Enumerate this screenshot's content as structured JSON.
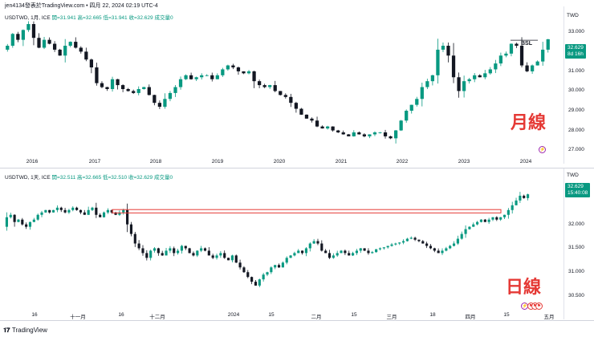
{
  "header": {
    "text": "jen4134發表於TradingView.com • 四月 22, 2024 02:19 UTC-4"
  },
  "top_pane": {
    "legend_symbol": "USDTWD, 1月, ICE",
    "legend_values": "開=31.941 高=32.665 低=31.941 收=32.629 成交量0",
    "currency": "TWD",
    "y_ticks": [
      "33.000",
      "32.000",
      "31.000",
      "30.000",
      "29.000",
      "28.000",
      "27.000"
    ],
    "price_tag_value": "32.629",
    "price_tag_time": "8d 16h",
    "x_labels": [
      "2016",
      "2017",
      "2018",
      "2019",
      "2020",
      "2021",
      "2022",
      "2023",
      "2024"
    ],
    "annotation": "月線",
    "bsl_label": "BSL"
  },
  "bottom_pane": {
    "legend_symbol": "USDTWD, 1天, ICE",
    "legend_values": "開=32.511 高=32.665 低=32.510 收=32.629 成交量0",
    "currency": "TWD",
    "y_ticks": [
      "32.000",
      "31.500",
      "31.000",
      "30.500"
    ],
    "price_tag_value": "32.629",
    "price_tag_time": "15:40:08",
    "x_labels": [
      "16",
      "十一月",
      "16",
      "十二月",
      "2024",
      "15",
      "二月",
      "15",
      "三月",
      "18",
      "四月",
      "15",
      "五月"
    ],
    "annotation": "日線"
  },
  "footer": {
    "brand": "TradingView"
  },
  "colors": {
    "up": "#089981",
    "down": "#131722",
    "accent_red": "#e53935",
    "purple": "#9c27b0"
  },
  "chart_data": [
    {
      "type": "candlestick",
      "title": "USDTWD, 1月, ICE",
      "x_labels": [
        "2016",
        "2017",
        "2018",
        "2019",
        "2020",
        "2021",
        "2022",
        "2023",
        "2024"
      ],
      "ylim": [
        26.8,
        33.4
      ],
      "closes": [
        32.3,
        32.9,
        32.6,
        33.1,
        33.4,
        32.7,
        32.2,
        32.6,
        32.4,
        32.1,
        31.8,
        32.3,
        32.5,
        32.2,
        32.0,
        31.6,
        31.2,
        30.4,
        30.2,
        30.1,
        30.6,
        30.3,
        30.1,
        30.0,
        29.9,
        30.1,
        30.2,
        29.8,
        29.4,
        29.2,
        29.6,
        29.9,
        30.2,
        30.6,
        30.8,
        30.6,
        30.7,
        30.8,
        30.8,
        30.6,
        30.8,
        31.1,
        31.3,
        31.2,
        31.0,
        30.9,
        31.0,
        30.5,
        30.3,
        30.2,
        30.3,
        30.0,
        29.8,
        29.7,
        29.4,
        29.1,
        28.8,
        28.6,
        28.5,
        28.2,
        28.1,
        28.2,
        28.0,
        27.9,
        27.8,
        27.7,
        27.9,
        27.8,
        27.7,
        27.8,
        27.9,
        27.9,
        27.7,
        27.6,
        28.0,
        28.5,
        29.0,
        29.3,
        29.6,
        30.2,
        30.5,
        30.8,
        32.1,
        32.3,
        31.8,
        30.7,
        30.0,
        30.5,
        30.6,
        30.8,
        30.7,
        30.9,
        31.1,
        31.4,
        31.8,
        31.9,
        32.4,
        32.3,
        31.3,
        31.0,
        31.3,
        31.5,
        32.1,
        32.63
      ]
    },
    {
      "type": "candlestick",
      "title": "USDTWD, 1天, ICE",
      "x_labels": [
        "16",
        "十一月",
        "16",
        "十二月",
        "2024",
        "15",
        "二月",
        "15",
        "三月",
        "18",
        "四月",
        "15",
        "五月"
      ],
      "ylim": [
        30.45,
        32.8
      ],
      "closes": [
        32.15,
        32.2,
        32.05,
        32.1,
        32.0,
        31.95,
        32.05,
        32.1,
        32.2,
        32.25,
        32.3,
        32.25,
        32.3,
        32.35,
        32.3,
        32.25,
        32.3,
        32.35,
        32.3,
        32.25,
        32.2,
        32.3,
        32.35,
        32.2,
        32.15,
        32.25,
        32.3,
        32.25,
        32.2,
        32.25,
        32.3,
        32.0,
        31.8,
        31.6,
        31.5,
        31.4,
        31.3,
        31.45,
        31.5,
        31.4,
        31.35,
        31.45,
        31.5,
        31.4,
        31.45,
        31.55,
        31.5,
        31.4,
        31.35,
        31.45,
        31.5,
        31.45,
        31.35,
        31.3,
        31.35,
        31.4,
        31.3,
        31.25,
        31.35,
        31.2,
        31.1,
        31.0,
        30.9,
        30.8,
        30.72,
        30.85,
        30.95,
        31.0,
        31.1,
        31.15,
        31.1,
        31.2,
        31.3,
        31.35,
        31.4,
        31.45,
        31.4,
        31.5,
        31.6,
        31.65,
        31.6,
        31.45,
        31.4,
        31.3,
        31.35,
        31.4,
        31.45,
        31.4,
        31.35,
        31.4,
        31.45,
        31.5,
        31.45,
        31.4,
        31.42,
        31.48,
        31.5,
        31.52,
        31.55,
        31.58,
        31.6,
        31.62,
        31.65,
        31.7,
        31.72,
        31.68,
        31.65,
        31.6,
        31.55,
        31.5,
        31.45,
        31.4,
        31.45,
        31.5,
        31.55,
        31.6,
        31.7,
        31.8,
        31.9,
        31.95,
        32.0,
        32.05,
        32.1,
        32.05,
        32.1,
        32.15,
        32.1,
        32.15,
        32.2,
        32.3,
        32.4,
        32.5,
        32.6,
        32.55,
        32.63
      ]
    }
  ]
}
